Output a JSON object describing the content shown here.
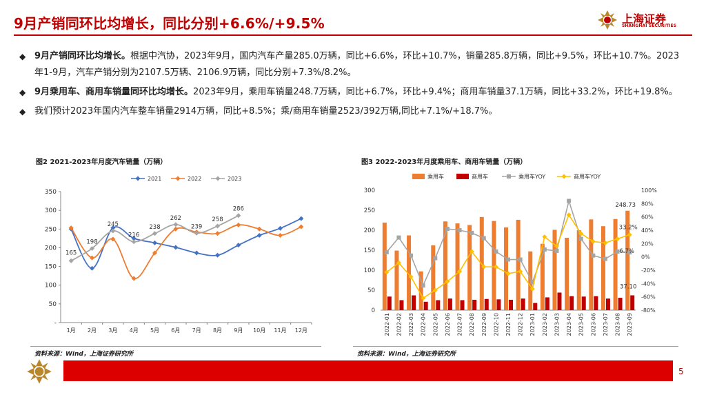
{
  "title": "9月产销同环比均增长，同比分别+6.6%/+9.5%",
  "logo": {
    "name": "上海证券",
    "sub": "SHANGHAI SECURITIES"
  },
  "bullets": [
    {
      "bold": "9月产销同环比均增长。",
      "text": "根据中汽协，2023年9月，国内汽车产量285.0万辆，同比+6.6%，环比+10.7%，销量285.8万辆，同比+9.5%，环比+10.7%。2023年1-9月，汽车产销分别为2107.5万辆、2106.9万辆，同比分别+7.3%/8.2%。"
    },
    {
      "bold": "9月乘用车、商用车销量同环比均增长。",
      "text": "2023年9月，乘用车销量248.7万辆，同比+6.7%，环比+9.4%；商用车销量37.1万辆，同比+33.2%，环比+19.8%。"
    },
    {
      "bold": "",
      "text": "我们预计2023年国内汽车整车销量2914万辆，同比+8.5%；乘/商用车销量2523/392万辆,同比+7.1%/+18.7%。"
    }
  ],
  "chart1_title": "图2 2021-2023年月度汽车销量（万辆）",
  "chart2_title": "图3 2022-2023年月度乘用车、商用车销量（万辆）",
  "source1": "资料来源：Wind，上海证券研究所",
  "source2": "资料来源：Wind，上海证券研究所",
  "page_number": "5",
  "colors": {
    "brand": "#c00000",
    "footer": "#dd0000",
    "s2021": "#4472c4",
    "s2022": "#ed7d31",
    "s2023": "#a5a5a5",
    "yoyPass": "#a5a5a5",
    "yoyComm": "#ffc000",
    "barPass": "#ed7d31",
    "barComm": "#c00000"
  },
  "chart_data": [
    {
      "type": "line",
      "title": "图2 2021-2023年月度汽车销量（万辆）",
      "categories": [
        "1月",
        "2月",
        "3月",
        "4月",
        "5月",
        "6月",
        "7月",
        "8月",
        "9月",
        "10月",
        "11月",
        "12月"
      ],
      "ylim": [
        0,
        350
      ],
      "yticks": [
        "-",
        "50",
        "100",
        "150",
        "200",
        "250",
        "300",
        "350"
      ],
      "legend": "top",
      "series": [
        {
          "name": "2021",
          "values": [
            250,
            145,
            253,
            225,
            213,
            201,
            186,
            180,
            207,
            233,
            252,
            278
          ]
        },
        {
          "name": "2022",
          "values": [
            253,
            173,
            223,
            118,
            186,
            250,
            242,
            238,
            261,
            250,
            233,
            256
          ]
        },
        {
          "name": "2023",
          "values": [
            165,
            198,
            245,
            216,
            238,
            262,
            239,
            258,
            286
          ]
        }
      ],
      "labels": [
        "165",
        "198",
        "245",
        "216",
        "238",
        "262",
        "239",
        "258",
        "286"
      ]
    },
    {
      "type": "bar",
      "title": "图3 2022-2023年月度乘用车、商用车销量（万辆）",
      "categories": [
        "2022-01",
        "2022-02",
        "2022-03",
        "2022-04",
        "2022-05",
        "2022-06",
        "2022-07",
        "2022-08",
        "2022-09",
        "2022-10",
        "2022-11",
        "2022-12",
        "2023-01",
        "2023-02",
        "2023-03",
        "2023-04",
        "2023-05",
        "2023-06",
        "2023-07",
        "2023-08",
        "2023-09"
      ],
      "ylim": [
        0,
        300
      ],
      "yticks": [
        "0",
        "50",
        "100",
        "150",
        "200",
        "250",
        "300"
      ],
      "y2lim": [
        -80,
        100
      ],
      "y2ticks": [
        "-80%",
        "-60%",
        "-40%",
        "-20%",
        "0%",
        "20%",
        "40%",
        "60%",
        "80%",
        "100%"
      ],
      "legend": "top",
      "series": [
        {
          "name": "乘用车",
          "kind": "bar",
          "values": [
            219,
            149,
            187,
            97,
            162,
            222,
            217,
            213,
            233,
            223,
            207,
            226,
            147,
            166,
            201,
            181,
            200,
            227,
            210,
            228,
            248.7
          ]
        },
        {
          "name": "商用车",
          "kind": "bar",
          "values": [
            34,
            25,
            37,
            21,
            25,
            29,
            25,
            26,
            28,
            27,
            26,
            29,
            18,
            32,
            44,
            35,
            34,
            35,
            29,
            31,
            37.1
          ]
        },
        {
          "name": "乘用车YOY",
          "kind": "line",
          "axis": "y2",
          "values": [
            7,
            29,
            2,
            -43,
            -2,
            42,
            40,
            36,
            28,
            8,
            -4,
            -4,
            -38,
            11,
            9,
            84,
            27,
            2,
            -3,
            8,
            6.7
          ]
        },
        {
          "name": "商用车YOY",
          "kind": "line",
          "axis": "y2",
          "values": [
            -23,
            -9,
            -30,
            -62,
            -50,
            -37,
            -22,
            8,
            -15,
            -15,
            -25,
            -22,
            -48,
            30,
            16,
            63,
            35,
            23,
            21,
            27,
            33.2
          ]
        }
      ],
      "labels": {
        "pass_last": "248.73",
        "comm_last": "37.10",
        "yoy_comm_last": "33.2%",
        "yoy_pass_last": "6.7%"
      }
    }
  ]
}
